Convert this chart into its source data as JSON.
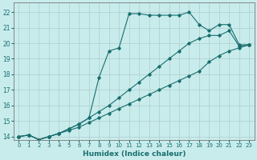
{
  "xlabel": "Humidex (Indice chaleur)",
  "background_color": "#c8ecec",
  "grid_color": "#b0cccc",
  "line_color": "#1a6e6e",
  "xlim": [
    -0.5,
    23.5
  ],
  "ylim": [
    13.8,
    22.6
  ],
  "yticks": [
    14,
    15,
    16,
    17,
    18,
    19,
    20,
    21,
    22
  ],
  "xticks": [
    0,
    1,
    2,
    3,
    4,
    5,
    6,
    7,
    8,
    9,
    10,
    11,
    12,
    13,
    14,
    15,
    16,
    17,
    18,
    19,
    20,
    21,
    22,
    23
  ],
  "line1_x": [
    0,
    1,
    2,
    3,
    4,
    5,
    6,
    7,
    8,
    9,
    10,
    11,
    12,
    13,
    14,
    15,
    16,
    17,
    18,
    19,
    20,
    21,
    22,
    23
  ],
  "line1_y": [
    14.0,
    14.1,
    13.8,
    14.0,
    14.2,
    14.4,
    14.6,
    14.9,
    15.2,
    15.5,
    15.8,
    16.1,
    16.4,
    16.7,
    17.0,
    17.3,
    17.6,
    17.9,
    18.2,
    18.8,
    19.2,
    19.5,
    19.7,
    19.9
  ],
  "line2_x": [
    0,
    1,
    2,
    3,
    4,
    5,
    6,
    7,
    8,
    9,
    10,
    11,
    12,
    13,
    14,
    15,
    16,
    17,
    18,
    19,
    20,
    21,
    22,
    23
  ],
  "line2_y": [
    14.0,
    14.1,
    13.8,
    14.0,
    14.2,
    14.5,
    14.8,
    15.2,
    15.6,
    16.0,
    16.5,
    17.0,
    17.5,
    18.0,
    18.5,
    19.0,
    19.5,
    20.0,
    20.3,
    20.5,
    20.5,
    20.8,
    19.8,
    19.9
  ],
  "line3_x": [
    0,
    1,
    2,
    3,
    4,
    5,
    6,
    7,
    8,
    9,
    10,
    11,
    12,
    13,
    14,
    15,
    16,
    17,
    18,
    19,
    20,
    21,
    22,
    23
  ],
  "line3_y": [
    14.0,
    14.1,
    13.8,
    14.0,
    14.2,
    14.5,
    14.8,
    15.2,
    17.8,
    19.5,
    19.7,
    21.9,
    21.9,
    21.8,
    21.8,
    21.8,
    21.8,
    22.0,
    21.2,
    20.8,
    21.2,
    21.2,
    19.9,
    19.9
  ]
}
